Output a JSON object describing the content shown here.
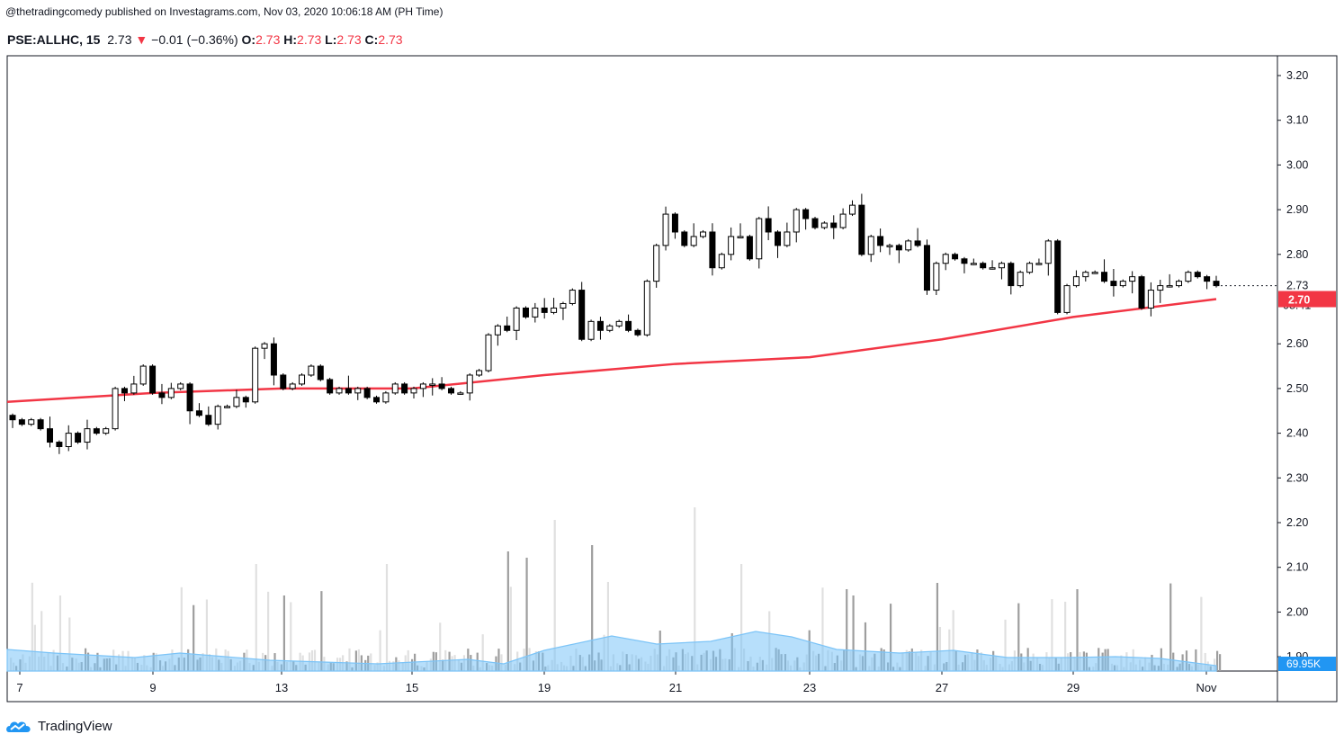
{
  "header": {
    "publisher_line": "@thetradingcomedy published on Investagrams.com, Nov 03, 2020 10:06:18 AM (PH Time)",
    "symbol": "PSE:ALLHC, 15",
    "last": "2.73",
    "change_arrow": "▼",
    "change": "−0.01 (−0.36%)",
    "o_label": "O:",
    "o_value": "2.73",
    "h_label": "H:",
    "h_value": "2.73",
    "l_label": "L:",
    "l_value": "2.73",
    "c_label": "C:",
    "c_value": "2.73"
  },
  "brand": {
    "name": "TradingView",
    "icon": "tradingview-cloud-icon"
  },
  "colors": {
    "candle_up_fill": "#ffffff",
    "candle_down_fill": "#000000",
    "candle_stroke": "#000000",
    "ma_line": "#f23645",
    "volume_dark": "#9e9e9e",
    "volume_light": "#e0e0e0",
    "volume_ma_fill": "#7cc4f7",
    "volume_badge": "#2196f3",
    "price_badge": "#f23645"
  },
  "chart_data": {
    "type": "candlestick",
    "x_ticks": [
      "7",
      "9",
      "13",
      "15",
      "19",
      "21",
      "23",
      "27",
      "29",
      "Nov"
    ],
    "y_ticks": [
      "3.20",
      "3.10",
      "3.00",
      "2.90",
      "2.80",
      "2.73",
      "2.60",
      "2.50",
      "2.40",
      "2.30",
      "2.20",
      "2.10",
      "2.00",
      "1.90"
    ],
    "ylim": [
      1.87,
      3.245
    ],
    "price_label": "2.73",
    "countdown_label": "08:41",
    "ma_label": "2.70",
    "volume_label": "69.95K",
    "close_path": [
      2.43,
      2.42,
      2.43,
      2.41,
      2.38,
      2.37,
      2.4,
      2.38,
      2.41,
      2.4,
      2.41,
      2.5,
      2.49,
      2.51,
      2.55,
      2.49,
      2.48,
      2.5,
      2.51,
      2.45,
      2.44,
      2.42,
      2.46,
      2.46,
      2.48,
      2.47,
      2.59,
      2.6,
      2.53,
      2.5,
      2.51,
      2.53,
      2.55,
      2.52,
      2.49,
      2.5,
      2.49,
      2.5,
      2.48,
      2.47,
      2.49,
      2.51,
      2.49,
      2.5,
      2.51,
      2.51,
      2.5,
      2.49,
      2.49,
      2.53,
      2.54,
      2.62,
      2.64,
      2.63,
      2.68,
      2.66,
      2.68,
      2.67,
      2.68,
      2.69,
      2.72,
      2.61,
      2.65,
      2.63,
      2.64,
      2.65,
      2.63,
      2.62,
      2.74,
      2.82,
      2.89,
      2.85,
      2.82,
      2.84,
      2.85,
      2.77,
      2.8,
      2.84,
      2.84,
      2.79,
      2.88,
      2.85,
      2.82,
      2.85,
      2.9,
      2.88,
      2.86,
      2.87,
      2.86,
      2.89,
      2.91,
      2.8,
      2.84,
      2.82,
      2.82,
      2.81,
      2.83,
      2.82,
      2.72,
      2.78,
      2.8,
      2.79,
      2.78,
      2.78,
      2.77,
      2.77,
      2.78,
      2.73,
      2.76,
      2.78,
      2.78,
      2.83,
      2.67,
      2.73,
      2.75,
      2.76,
      2.76,
      2.74,
      2.73,
      2.74,
      2.75,
      2.68,
      2.72,
      2.73,
      2.73,
      2.74,
      2.76,
      2.75,
      2.74,
      2.73
    ],
    "ma_series": [
      {
        "x": "7",
        "y": 2.47
      },
      {
        "x": "9",
        "y": 2.49
      },
      {
        "x": "13",
        "y": 2.5
      },
      {
        "x": "15",
        "y": 2.5
      },
      {
        "x": "19",
        "y": 2.53
      },
      {
        "x": "21",
        "y": 2.555
      },
      {
        "x": "23",
        "y": 2.57
      },
      {
        "x": "27",
        "y": 2.61
      },
      {
        "x": "29",
        "y": 2.66
      },
      {
        "x": "Nov",
        "y": 2.7
      }
    ],
    "grid": false
  }
}
